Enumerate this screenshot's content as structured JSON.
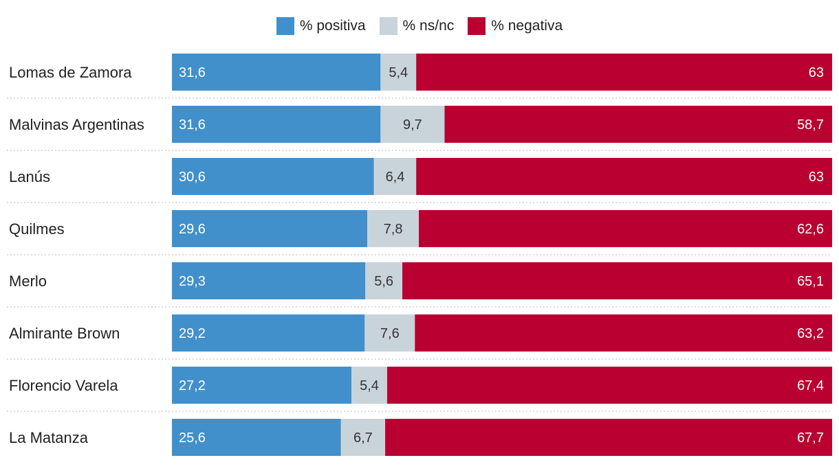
{
  "chart_data": {
    "type": "bar",
    "orientation": "horizontal",
    "stacked": true,
    "categories": [
      "Lomas de Zamora",
      "Malvinas Argentinas",
      "Lanús",
      "Quilmes",
      "Merlo",
      "Almirante Brown",
      "Florencio Varela",
      "La Matanza"
    ],
    "series": [
      {
        "name": "% positiva",
        "color": "#4290cb",
        "label_color": "#ffffff",
        "values": [
          31.6,
          31.6,
          30.6,
          29.6,
          29.3,
          29.2,
          27.2,
          25.6
        ],
        "labels": [
          "31,6",
          "31,6",
          "30,6",
          "29,6",
          "29,3",
          "29,2",
          "27,2",
          "25,6"
        ]
      },
      {
        "name": "% ns/nc",
        "color": "#c9d3da",
        "label_color": "#333333",
        "values": [
          5.4,
          9.7,
          6.4,
          7.8,
          5.6,
          7.6,
          5.4,
          6.7
        ],
        "labels": [
          "5,4",
          "9,7",
          "6,4",
          "7,8",
          "5,6",
          "7,6",
          "5,4",
          "6,7"
        ]
      },
      {
        "name": "% negativa",
        "color": "#b90031",
        "label_color": "#ffffff",
        "values": [
          63,
          58.7,
          63,
          62.6,
          65.1,
          63.2,
          67.4,
          67.7
        ],
        "labels": [
          "63",
          "58,7",
          "63",
          "62,6",
          "65,1",
          "63,2",
          "67,4",
          "67,7"
        ]
      }
    ],
    "xlim": [
      0,
      100
    ],
    "legend": "top-center",
    "grid": false
  }
}
